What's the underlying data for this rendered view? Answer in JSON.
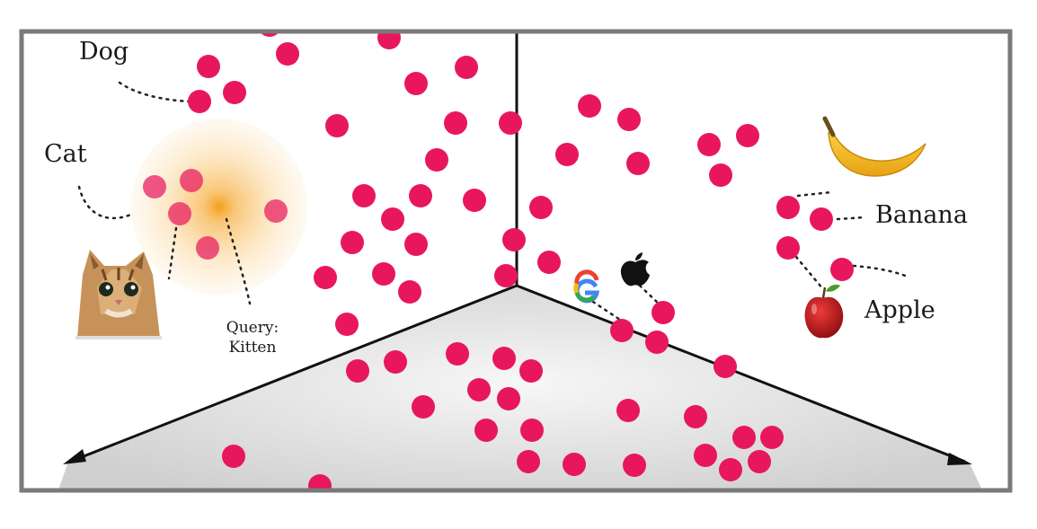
{
  "labels": {
    "dog": "Dog",
    "cat": "Cat",
    "query_line1": "Query:",
    "query_line2": "Kitten",
    "banana": "Banana",
    "apple": "Apple"
  },
  "colors": {
    "point": "#e8175d",
    "frame": "#7a7a7a",
    "axis": "#111111",
    "floor_center": "#f6f6f6",
    "floor_edge": "#cfcfcf",
    "glow": "#f6a21e",
    "banana": "#f2b623",
    "apple": "#c8161d"
  },
  "icons": [
    "cat-photo",
    "banana-icon",
    "apple-fruit-icon",
    "google-logo",
    "apple-logo"
  ]
}
